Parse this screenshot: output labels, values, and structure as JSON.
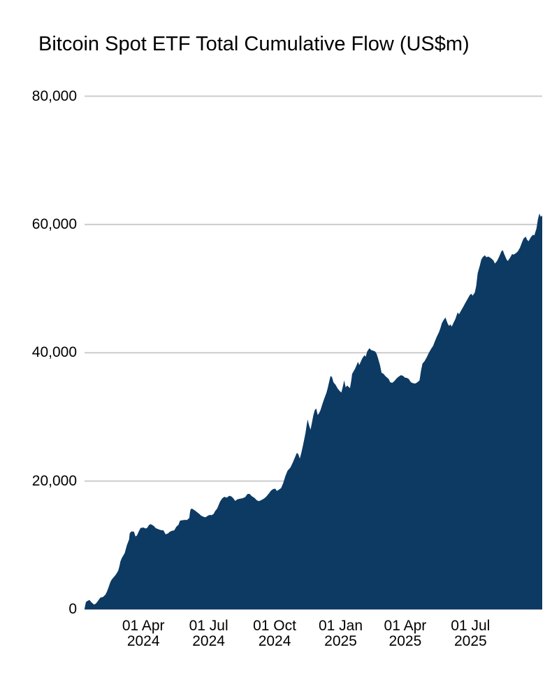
{
  "page": {
    "background_color": "#ffffff"
  },
  "title": "Bitcoin Spot ETF Total Cumulative Flow (US$m)",
  "chart_data": {
    "type": "area",
    "title": "Bitcoin Spot ETF Total Cumulative Flow (US$m)",
    "legend_position": "none",
    "grid": true,
    "colors": {
      "area_fill": "#0c3a63",
      "gridline": "#cccccc",
      "text": "#000000",
      "background": "#ffffff"
    },
    "ylim": [
      0,
      80000
    ],
    "y_ticks": [
      {
        "value": 0,
        "label": "0"
      },
      {
        "value": 20000,
        "label": "20,000"
      },
      {
        "value": 40000,
        "label": "40,000"
      },
      {
        "value": 60000,
        "label": "60,000"
      },
      {
        "value": 80000,
        "label": "80,000"
      }
    ],
    "x_unit": "days since first data point (10 Jan 2024)",
    "xlim_days": [
      0,
      638
    ],
    "x_ticks": [
      {
        "day": 82,
        "line1": "01 Apr",
        "line2": "2024"
      },
      {
        "day": 173,
        "line1": "01 Jul",
        "line2": "2024"
      },
      {
        "day": 265,
        "line1": "01 Oct",
        "line2": "2024"
      },
      {
        "day": 357,
        "line1": "01 Jan",
        "line2": "2025"
      },
      {
        "day": 447,
        "line1": "01 Apr",
        "line2": "2025"
      },
      {
        "day": 538,
        "line1": "01 Jul",
        "line2": "2025"
      }
    ],
    "series": [
      {
        "name": "Total cumulative flow (US$m)",
        "points": [
          [
            0,
            100
          ],
          [
            1,
            655
          ],
          [
            2,
            1160
          ],
          [
            4,
            1310
          ],
          [
            6,
            1420
          ],
          [
            7,
            1460
          ],
          [
            9,
            1180
          ],
          [
            11,
            970
          ],
          [
            13,
            760
          ],
          [
            15,
            830
          ],
          [
            17,
            1060
          ],
          [
            19,
            1360
          ],
          [
            22,
            1830
          ],
          [
            26,
            1950
          ],
          [
            29,
            2290
          ],
          [
            31,
            2700
          ],
          [
            33,
            3310
          ],
          [
            36,
            4260
          ],
          [
            38,
            4660
          ],
          [
            40,
            4940
          ],
          [
            43,
            5310
          ],
          [
            45,
            5660
          ],
          [
            47,
            6060
          ],
          [
            49,
            6900
          ],
          [
            50,
            7460
          ],
          [
            52,
            8020
          ],
          [
            55,
            8580
          ],
          [
            56,
            8780
          ],
          [
            58,
            9580
          ],
          [
            59,
            10010
          ],
          [
            62,
            10870
          ],
          [
            63,
            11880
          ],
          [
            65,
            12110
          ],
          [
            66,
            12160
          ],
          [
            69,
            12090
          ],
          [
            71,
            11350
          ],
          [
            73,
            11510
          ],
          [
            76,
            12240
          ],
          [
            78,
            12680
          ],
          [
            82,
            12760
          ],
          [
            85,
            12610
          ],
          [
            87,
            12660
          ],
          [
            90,
            13160
          ],
          [
            92,
            13280
          ],
          [
            94,
            13190
          ],
          [
            97,
            12950
          ],
          [
            99,
            12670
          ],
          [
            103,
            12490
          ],
          [
            106,
            12370
          ],
          [
            110,
            12310
          ],
          [
            113,
            11700
          ],
          [
            116,
            11820
          ],
          [
            119,
            12110
          ],
          [
            122,
            12260
          ],
          [
            125,
            12310
          ],
          [
            128,
            12880
          ],
          [
            131,
            13190
          ],
          [
            133,
            13810
          ],
          [
            136,
            13900
          ],
          [
            140,
            13950
          ],
          [
            143,
            13940
          ],
          [
            146,
            14260
          ],
          [
            147,
            15150
          ],
          [
            148,
            15640
          ],
          [
            150,
            15700
          ],
          [
            154,
            15410
          ],
          [
            156,
            15210
          ],
          [
            159,
            14980
          ],
          [
            163,
            14570
          ],
          [
            167,
            14390
          ],
          [
            169,
            14380
          ],
          [
            172,
            14610
          ],
          [
            175,
            14740
          ],
          [
            177,
            14670
          ],
          [
            180,
            14890
          ],
          [
            182,
            15310
          ],
          [
            185,
            15730
          ],
          [
            189,
            16810
          ],
          [
            192,
            17310
          ],
          [
            195,
            17550
          ],
          [
            198,
            17410
          ],
          [
            202,
            17710
          ],
          [
            205,
            17570
          ],
          [
            207,
            17360
          ],
          [
            210,
            16910
          ],
          [
            213,
            17160
          ],
          [
            217,
            17260
          ],
          [
            220,
            17310
          ],
          [
            224,
            17510
          ],
          [
            227,
            17970
          ],
          [
            230,
            18010
          ],
          [
            233,
            17660
          ],
          [
            237,
            17360
          ],
          [
            240,
            17010
          ],
          [
            243,
            16860
          ],
          [
            246,
            17010
          ],
          [
            250,
            17260
          ],
          [
            253,
            17530
          ],
          [
            257,
            18060
          ],
          [
            260,
            18510
          ],
          [
            263,
            18760
          ],
          [
            266,
            18810
          ],
          [
            268,
            18460
          ],
          [
            271,
            18660
          ],
          [
            274,
            18910
          ],
          [
            277,
            19710
          ],
          [
            280,
            20810
          ],
          [
            283,
            21610
          ],
          [
            287,
            22110
          ],
          [
            290,
            22810
          ],
          [
            293,
            23610
          ],
          [
            296,
            24410
          ],
          [
            298,
            24200
          ],
          [
            300,
            23500
          ],
          [
            302,
            24300
          ],
          [
            304,
            25300
          ],
          [
            306,
            26400
          ],
          [
            308,
            27500
          ],
          [
            310,
            29000
          ],
          [
            311,
            29600
          ],
          [
            313,
            28700
          ],
          [
            315,
            28000
          ],
          [
            317,
            29100
          ],
          [
            319,
            30300
          ],
          [
            321,
            31100
          ],
          [
            323,
            31300
          ],
          [
            325,
            30300
          ],
          [
            327,
            30600
          ],
          [
            329,
            31100
          ],
          [
            331,
            31800
          ],
          [
            333,
            32500
          ],
          [
            335,
            33100
          ],
          [
            337,
            33700
          ],
          [
            339,
            34500
          ],
          [
            341,
            35500
          ],
          [
            343,
            36400
          ],
          [
            345,
            36200
          ],
          [
            347,
            35400
          ],
          [
            350,
            35000
          ],
          [
            353,
            34400
          ],
          [
            356,
            34000
          ],
          [
            358,
            33800
          ],
          [
            360,
            34700
          ],
          [
            362,
            35700
          ],
          [
            364,
            34600
          ],
          [
            366,
            34900
          ],
          [
            370,
            34500
          ],
          [
            372,
            35800
          ],
          [
            373,
            36700
          ],
          [
            377,
            37500
          ],
          [
            379,
            38000
          ],
          [
            381,
            38600
          ],
          [
            383,
            38100
          ],
          [
            387,
            39100
          ],
          [
            390,
            39600
          ],
          [
            392,
            39400
          ],
          [
            394,
            40200
          ],
          [
            397,
            40700
          ],
          [
            400,
            40400
          ],
          [
            403,
            40300
          ],
          [
            405,
            40200
          ],
          [
            407,
            39900
          ],
          [
            409,
            39200
          ],
          [
            412,
            38000
          ],
          [
            414,
            36900
          ],
          [
            417,
            36700
          ],
          [
            419,
            36400
          ],
          [
            421,
            36200
          ],
          [
            424,
            35900
          ],
          [
            426,
            35400
          ],
          [
            429,
            35300
          ],
          [
            432,
            35600
          ],
          [
            435,
            36000
          ],
          [
            438,
            36300
          ],
          [
            441,
            36500
          ],
          [
            444,
            36400
          ],
          [
            447,
            36100
          ],
          [
            449,
            36100
          ],
          [
            452,
            35900
          ],
          [
            455,
            35400
          ],
          [
            458,
            35250
          ],
          [
            461,
            35200
          ],
          [
            464,
            35400
          ],
          [
            467,
            35700
          ],
          [
            469,
            37200
          ],
          [
            471,
            38300
          ],
          [
            474,
            38700
          ],
          [
            477,
            39300
          ],
          [
            480,
            40000
          ],
          [
            483,
            40600
          ],
          [
            486,
            41100
          ],
          [
            488,
            41700
          ],
          [
            491,
            42500
          ],
          [
            494,
            43200
          ],
          [
            496,
            43800
          ],
          [
            498,
            44600
          ],
          [
            500,
            45000
          ],
          [
            503,
            45500
          ],
          [
            506,
            44600
          ],
          [
            508,
            44200
          ],
          [
            510,
            44400
          ],
          [
            512,
            44100
          ],
          [
            514,
            44600
          ],
          [
            517,
            45300
          ],
          [
            520,
            46300
          ],
          [
            522,
            46000
          ],
          [
            525,
            46600
          ],
          [
            528,
            47200
          ],
          [
            531,
            47800
          ],
          [
            534,
            48400
          ],
          [
            537,
            49000
          ],
          [
            539,
            49200
          ],
          [
            541,
            48900
          ],
          [
            544,
            49400
          ],
          [
            546,
            50400
          ],
          [
            548,
            52400
          ],
          [
            551,
            53600
          ],
          [
            553,
            54500
          ],
          [
            555,
            54900
          ],
          [
            558,
            55200
          ],
          [
            560,
            54900
          ],
          [
            563,
            55000
          ],
          [
            566,
            54800
          ],
          [
            568,
            54600
          ],
          [
            570,
            54400
          ],
          [
            572,
            53900
          ],
          [
            575,
            54300
          ],
          [
            578,
            55000
          ],
          [
            581,
            55800
          ],
          [
            583,
            56000
          ],
          [
            585,
            55400
          ],
          [
            588,
            54600
          ],
          [
            590,
            54300
          ],
          [
            593,
            54800
          ],
          [
            596,
            55400
          ],
          [
            598,
            55300
          ],
          [
            601,
            55500
          ],
          [
            604,
            55800
          ],
          [
            607,
            56400
          ],
          [
            610,
            57300
          ],
          [
            612,
            57800
          ],
          [
            615,
            58100
          ],
          [
            617,
            57600
          ],
          [
            619,
            57400
          ],
          [
            622,
            58000
          ],
          [
            625,
            58400
          ],
          [
            627,
            58300
          ],
          [
            630,
            59400
          ],
          [
            632,
            60800
          ],
          [
            634,
            61700
          ],
          [
            636,
            61200
          ],
          [
            638,
            61400
          ]
        ]
      }
    ]
  }
}
